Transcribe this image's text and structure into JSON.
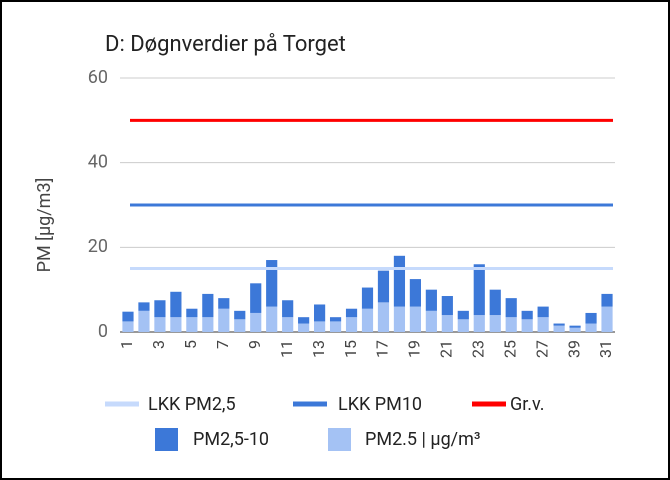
{
  "chart_data": {
    "type": "bar",
    "stacked": true,
    "title": "D: Døgnverdier på Torget",
    "y_label": "PM [µg/m3]",
    "categories": [
      "1",
      null,
      "3",
      null,
      "5",
      null,
      "7",
      null,
      "9",
      null,
      "11",
      null,
      "13",
      null,
      "15",
      null,
      "17",
      null,
      "19",
      null,
      "21",
      null,
      "23",
      null,
      "25",
      null,
      "27",
      null,
      "39",
      null,
      "31"
    ],
    "series": [
      {
        "name": "PM2.5 | µg/m³",
        "color": "#a4c2f4",
        "values": [
          2.5,
          5,
          3.5,
          3.5,
          3.5,
          3.5,
          5.5,
          3,
          4.5,
          6,
          3.5,
          2,
          2.5,
          2.5,
          3.5,
          5.5,
          7,
          6,
          6,
          5,
          4,
          3,
          4,
          4,
          3.5,
          3,
          3.5,
          1.5,
          1,
          2,
          6
        ]
      },
      {
        "name": "PM2,5-10",
        "color": "#3c78d8",
        "values": [
          2.3,
          2,
          4,
          6,
          2,
          5.5,
          2.5,
          2,
          7,
          11,
          4,
          1.5,
          4,
          1,
          2,
          5,
          7.5,
          12,
          6.5,
          5,
          4.5,
          2,
          12,
          6,
          4.5,
          2,
          2.5,
          0.5,
          0.5,
          2.5,
          3
        ]
      }
    ],
    "lines": [
      {
        "name": "LKK PM2,5",
        "color": "#c6dafc",
        "value": 15
      },
      {
        "name": "LKK PM10",
        "color": "#3c78d8",
        "value": 30
      },
      {
        "name": "Gr.v.",
        "color": "#ff0000",
        "value": 50
      }
    ],
    "ylim": [
      0,
      60
    ],
    "yticks": [
      0,
      20,
      40,
      60
    ],
    "grid": true
  }
}
